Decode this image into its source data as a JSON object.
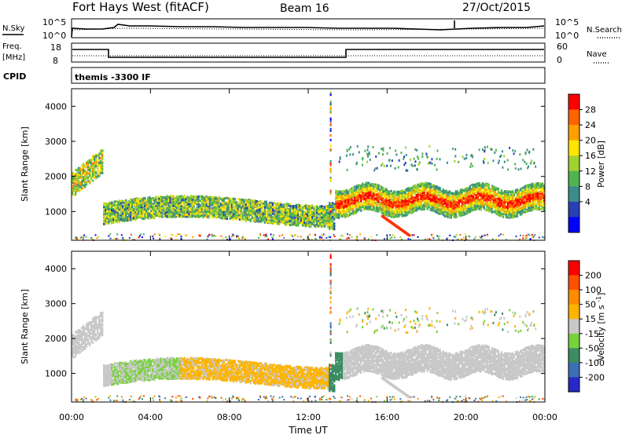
{
  "header": {
    "station": "Fort Hays West (fitACF)",
    "beam": "Beam 16",
    "date": "27/Oct/2015"
  },
  "status_panels": {
    "nsky_label": "N.Sky",
    "nsky_ticks": [
      "10^5",
      "10^0"
    ],
    "nsearch_label": "N.Search",
    "nsearch_ticks": [
      "10^5",
      "10^0"
    ],
    "freq_label_line1": "Freq.",
    "freq_label_line2": "[MHz]",
    "freq_ticks": [
      "18",
      "8"
    ],
    "nave_label": "Nave",
    "nave_ticks": [
      "60",
      "0"
    ],
    "cpid_label": "CPID",
    "cpid_text": "themis -3300 IF"
  },
  "chart_data": [
    {
      "type": "heatmap",
      "name": "power",
      "ylabel": "Slant Range [km]",
      "yticks": [
        "4000",
        "3000",
        "2000",
        "1000"
      ],
      "ylim": [
        180,
        4500
      ],
      "xlim_hours": [
        0,
        24
      ],
      "colorbar_label": "Power [dB]",
      "colorbar_ticks": [
        "28",
        "24",
        "20",
        "16",
        "12",
        "8",
        "4"
      ],
      "colorbar_range": [
        0,
        32
      ],
      "colors": [
        "#0000ff",
        "#2840b4",
        "#3c8c8c",
        "#50b450",
        "#a0d232",
        "#ffe600",
        "#ffa000",
        "#ff6400",
        "#ff0000"
      ],
      "grid": false
    },
    {
      "type": "heatmap",
      "name": "velocity",
      "ylabel": "Slant Range [km]",
      "yticks": [
        "4000",
        "3000",
        "2000",
        "1000"
      ],
      "ylim": [
        180,
        4500
      ],
      "xlim_hours": [
        0,
        24
      ],
      "colorbar_label": "Velocity [m s^-1]",
      "colorbar_ticks": [
        "200",
        "100",
        "50",
        "15",
        "-15",
        "-50",
        "-100",
        "-200"
      ],
      "colors": [
        "#2828c8",
        "#3c6eb4",
        "#3c8c64",
        "#78d23c",
        "#c8c8c8",
        "#ffb400",
        "#ff8c00",
        "#ff5000",
        "#ff0000"
      ],
      "grid": false
    }
  ],
  "xaxis": {
    "ticks": [
      "00:00",
      "04:00",
      "08:00",
      "12:00",
      "16:00",
      "20:00",
      "00:00"
    ],
    "label": "Time UT"
  }
}
